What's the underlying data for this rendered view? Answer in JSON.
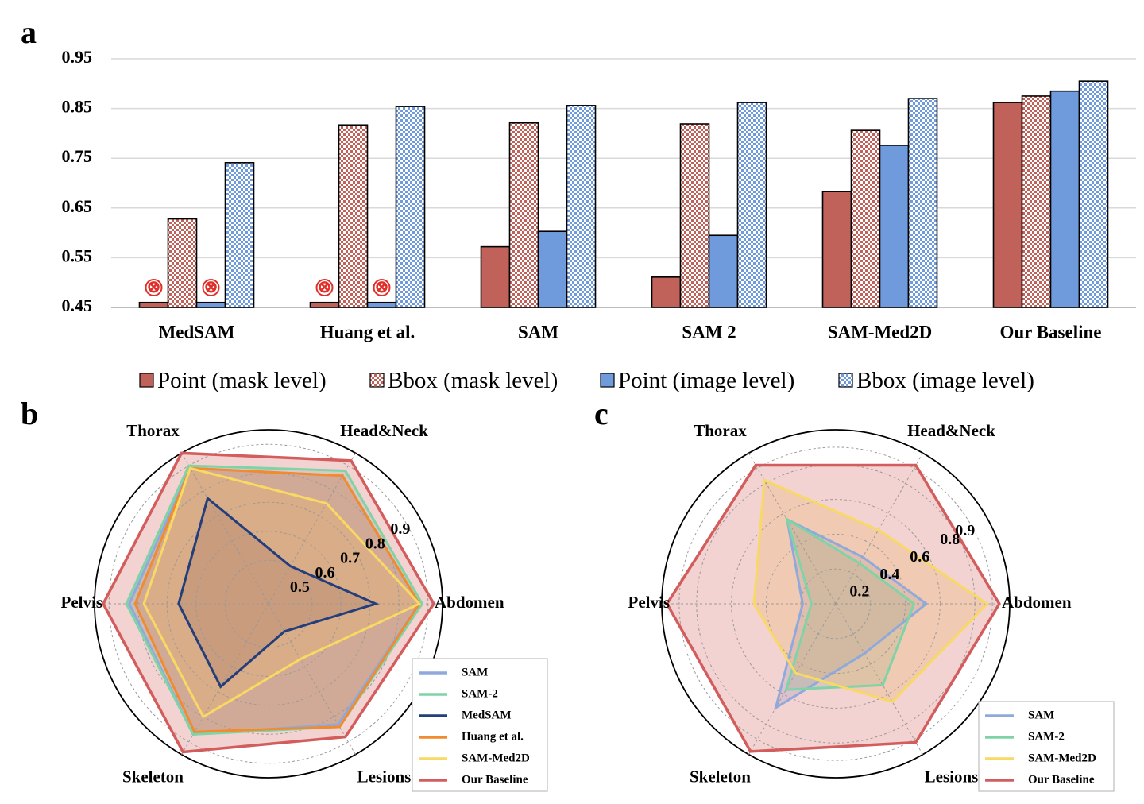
{
  "panels": {
    "a": "a",
    "b": "b",
    "c": "c"
  },
  "colors": {
    "point_mask": "#c0625a",
    "bbox_mask": "#c0625a",
    "point_image": "#6f9bdc",
    "bbox_image": "#6f9bdc",
    "SAM": "#8fa9dd",
    "SAM-2": "#7fd3a6",
    "MedSAM": "#233e7b",
    "Huang et al.": "#f28a2e",
    "SAM-Med2D": "#f7d964",
    "Our Baseline": "#d35d5d"
  },
  "chart_data": [
    {
      "type": "bar",
      "panel": "a",
      "categories": [
        "MedSAM",
        "Huang et al.",
        "SAM",
        "SAM 2",
        "SAM-Med2D",
        "Our Baseline"
      ],
      "ylim": [
        0.45,
        0.95
      ],
      "yticks": [
        "0.45",
        "0.55",
        "0.65",
        "0.75",
        "0.85",
        "0.95"
      ],
      "ytick_values": [
        0.45,
        0.55,
        0.65,
        0.75,
        0.85,
        0.95
      ],
      "series": [
        {
          "name": "Point (mask level)",
          "key": "point_mask",
          "values": [
            0.46,
            0.46,
            0.572,
            0.511,
            0.683,
            0.862
          ]
        },
        {
          "name": "Bbox (mask level)",
          "key": "bbox_mask",
          "values": [
            0.628,
            0.817,
            0.821,
            0.819,
            0.806,
            0.875
          ]
        },
        {
          "name": "Point (image level)",
          "key": "point_image",
          "values": [
            0.46,
            0.46,
            0.603,
            0.595,
            0.776,
            0.885
          ]
        },
        {
          "name": "Bbox (image level)",
          "key": "bbox_image",
          "values": [
            0.741,
            0.854,
            0.856,
            0.862,
            0.87,
            0.905
          ]
        }
      ],
      "not_supported_marker": "⊗",
      "not_supported": [
        {
          "series": 0,
          "category": 0
        },
        {
          "series": 2,
          "category": 0
        },
        {
          "series": 0,
          "category": 1
        },
        {
          "series": 2,
          "category": 1
        }
      ]
    },
    {
      "type": "radar",
      "panel": "b",
      "axes": [
        "Abdomen",
        "Head&Neck",
        "Thorax",
        "Pelvis",
        "Skeleton",
        "Lesions"
      ],
      "range": [
        0.35,
        0.95
      ],
      "ring_values": [
        0.5,
        0.6,
        0.7,
        0.8,
        0.9
      ],
      "ring_labels": [
        "0.5",
        "0.6",
        "0.7",
        "0.8",
        "0.9"
      ],
      "series": [
        {
          "name": "SAM",
          "values": [
            0.87,
            0.86,
            0.89,
            0.83,
            0.87,
            0.83
          ]
        },
        {
          "name": "SAM-2",
          "values": [
            0.88,
            0.88,
            0.9,
            0.84,
            0.87,
            0.84
          ]
        },
        {
          "name": "MedSAM",
          "values": [
            0.72,
            0.5,
            0.77,
            0.66,
            0.68,
            0.46
          ]
        },
        {
          "name": "Huang et al.",
          "values": [
            0.87,
            0.86,
            0.89,
            0.81,
            0.86,
            0.84
          ]
        },
        {
          "name": "SAM-Med2D",
          "values": [
            0.87,
            0.75,
            0.89,
            0.78,
            0.8,
            0.57
          ]
        },
        {
          "name": "Our Baseline",
          "values": [
            0.92,
            0.92,
            0.95,
            0.92,
            0.94,
            0.88
          ]
        }
      ]
    },
    {
      "type": "radar",
      "panel": "c",
      "axes": [
        "Abdomen",
        "Head&Neck",
        "Thorax",
        "Pelvis",
        "Skeleton",
        "Lesions"
      ],
      "range": [
        0.0,
        1.0
      ],
      "ring_values": [
        0.2,
        0.4,
        0.6,
        0.8,
        0.9
      ],
      "ring_labels": [
        "0.2",
        "0.4",
        "0.6",
        "0.8",
        "0.9"
      ],
      "series": [
        {
          "name": "SAM",
          "values": [
            0.52,
            0.31,
            0.56,
            0.19,
            0.69,
            0.33
          ]
        },
        {
          "name": "SAM-2",
          "values": [
            0.45,
            0.27,
            0.56,
            0.14,
            0.57,
            0.54
          ]
        },
        {
          "name": "SAM-Med2D",
          "values": [
            0.87,
            0.49,
            0.82,
            0.47,
            0.46,
            0.65
          ]
        },
        {
          "name": "Our Baseline",
          "values": [
            0.94,
            0.92,
            0.92,
            0.97,
            0.98,
            0.92
          ]
        }
      ]
    }
  ]
}
